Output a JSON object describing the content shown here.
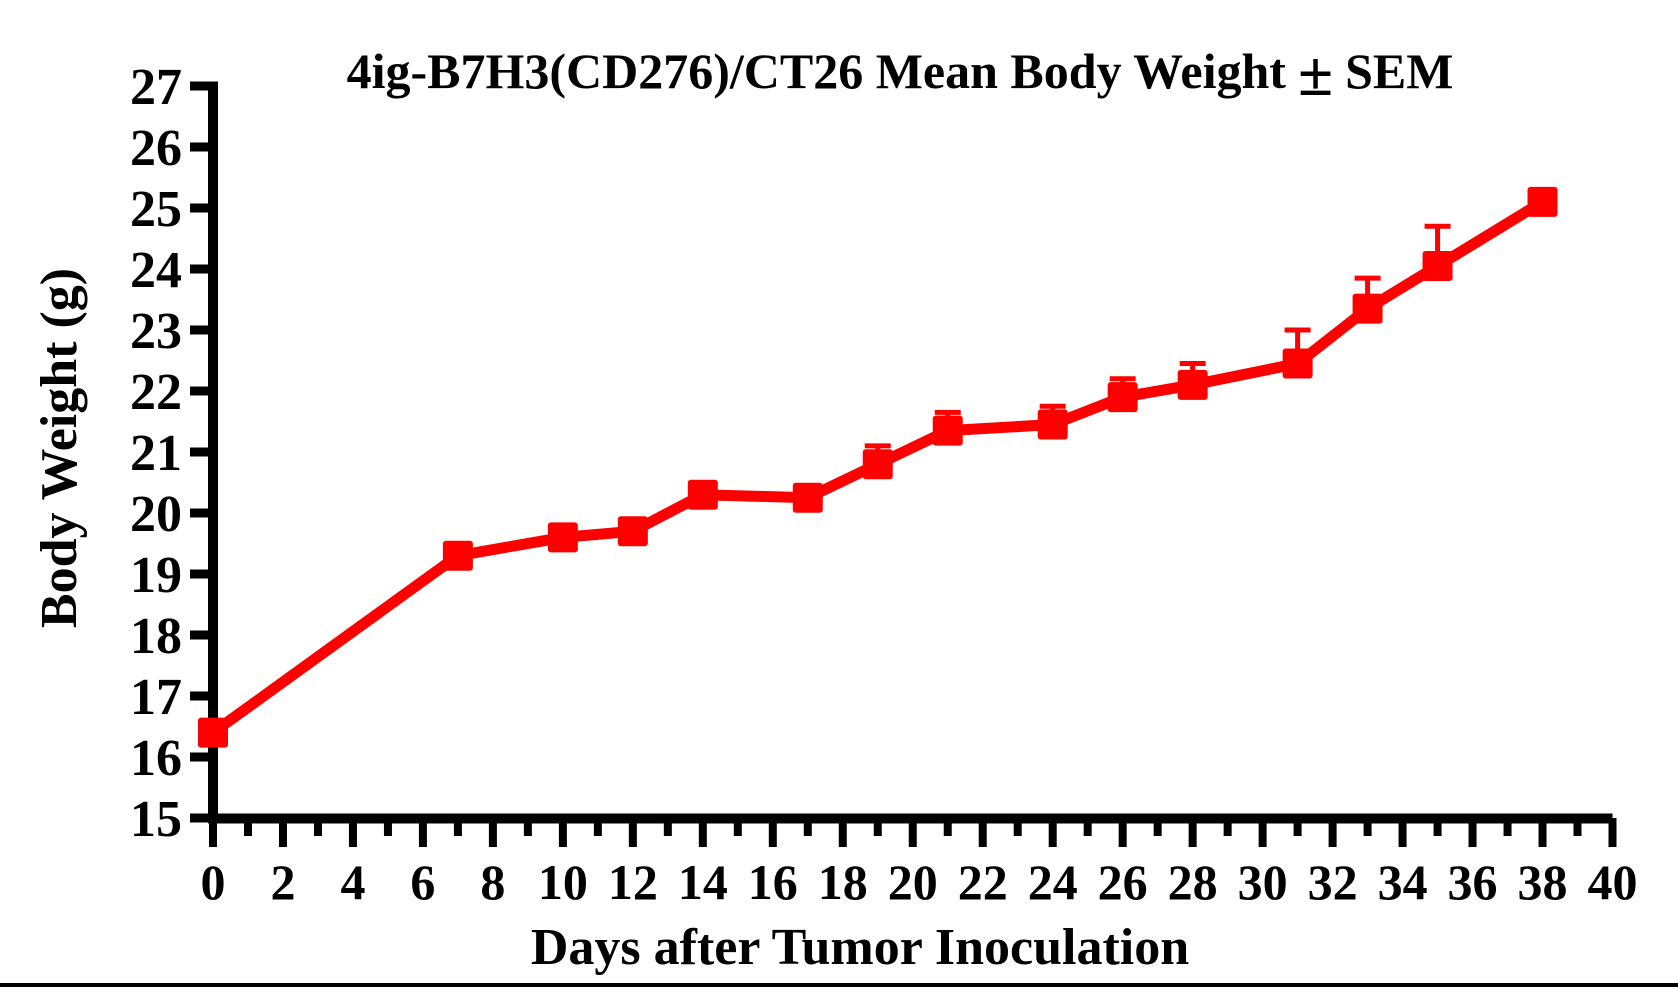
{
  "figure": {
    "title_pre": "4ig-B7H3(CD276)/CT26 Mean Body Weight",
    "title_pm": "±",
    "title_post": "SEM",
    "xlabel": "Days after Tumor Inoculation",
    "ylabel": "Body Weight (g)"
  },
  "chart_data": {
    "type": "line",
    "title": "4ig-B7H3(CD276)/CT26 Mean Body Weight ± SEM",
    "xlabel": "Days after Tumor Inoculation",
    "ylabel": "Body Weight (g)",
    "xlim": [
      0,
      40
    ],
    "ylim": [
      15,
      27
    ],
    "grid": false,
    "legend_position": "none",
    "x_tick_labels": [
      0,
      2,
      4,
      6,
      8,
      10,
      12,
      14,
      16,
      18,
      20,
      22,
      24,
      26,
      28,
      30,
      32,
      34,
      36,
      38,
      40
    ],
    "x_minor_ticks": [
      1,
      3,
      5,
      7,
      9,
      11,
      13,
      15,
      17,
      19,
      21,
      23,
      25,
      27,
      29,
      31,
      33,
      35,
      37,
      39
    ],
    "y_tick_labels": [
      15,
      16,
      17,
      18,
      19,
      20,
      21,
      22,
      23,
      24,
      25,
      26,
      27
    ],
    "series": [
      {
        "name": "Mean Body Weight ± SEM",
        "color": "#ff0000",
        "marker": "square",
        "x": [
          0,
          7,
          10,
          12,
          14,
          17,
          19,
          21,
          24,
          26,
          28,
          31,
          33,
          35,
          38
        ],
        "y": [
          16.4,
          19.3,
          19.6,
          19.7,
          20.3,
          20.25,
          20.8,
          21.35,
          21.45,
          21.9,
          22.1,
          22.45,
          23.35,
          24.05,
          25.1
        ],
        "sem_upper": [
          0,
          0,
          0,
          0,
          0,
          0,
          0.3,
          0.3,
          0.3,
          0.3,
          0.35,
          0.55,
          0.5,
          0.65,
          0
        ]
      }
    ]
  }
}
